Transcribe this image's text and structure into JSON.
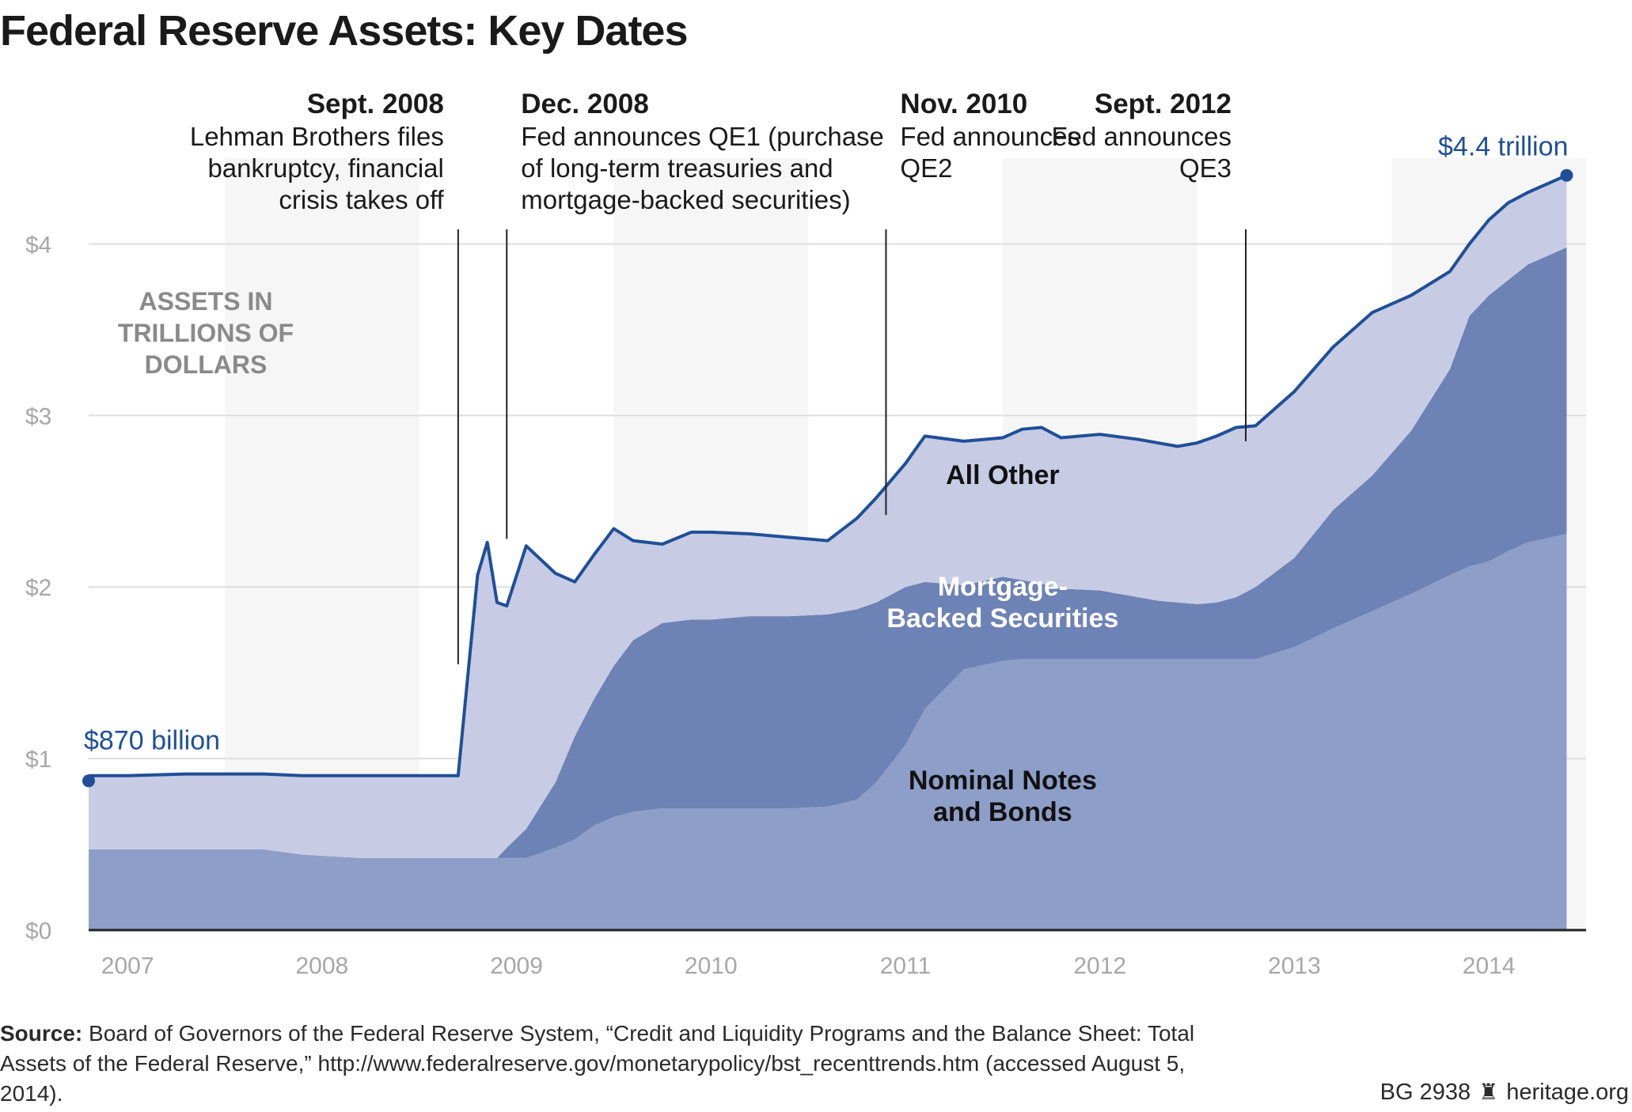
{
  "title": "Federal Reserve Assets: Key Dates",
  "chart_data": {
    "type": "area",
    "stacked": true,
    "title": "Federal Reserve Assets: Key Dates",
    "ylabel": "ASSETS IN TRILLIONS OF DOLLARS",
    "ylabel_lines": [
      "ASSETS IN",
      "TRILLIONS OF",
      "DOLLARS"
    ],
    "y_ticks": [
      "$0",
      "$1",
      "$2",
      "$3",
      "$4"
    ],
    "ylim": [
      0,
      4.5
    ],
    "xlim": [
      2006.8,
      2014.5
    ],
    "x_ticks": [
      {
        "label": "2007",
        "x": 2007.0
      },
      {
        "label": "2008",
        "x": 2008.0
      },
      {
        "label": "2009",
        "x": 2009.0
      },
      {
        "label": "2010",
        "x": 2010.0
      },
      {
        "label": "2011",
        "x": 2011.0
      },
      {
        "label": "2012",
        "x": 2012.0
      },
      {
        "label": "2013",
        "x": 2013.0
      },
      {
        "label": "2014",
        "x": 2014.0
      }
    ],
    "grid": true,
    "x": [
      2006.8,
      2007.0,
      2007.3,
      2007.5,
      2007.7,
      2007.9,
      2008.2,
      2008.5,
      2008.7,
      2008.8,
      2008.85,
      2008.9,
      2008.95,
      2009.05,
      2009.2,
      2009.3,
      2009.4,
      2009.5,
      2009.6,
      2009.75,
      2009.9,
      2010.0,
      2010.2,
      2010.4,
      2010.6,
      2010.75,
      2010.85,
      2011.0,
      2011.1,
      2011.3,
      2011.5,
      2011.6,
      2011.7,
      2011.8,
      2012.0,
      2012.2,
      2012.3,
      2012.4,
      2012.5,
      2012.6,
      2012.7,
      2012.8,
      2013.0,
      2013.2,
      2013.4,
      2013.6,
      2013.8,
      2013.9,
      2014.0,
      2014.1,
      2014.2,
      2014.4
    ],
    "series": [
      {
        "name": "Nominal Notes and Bonds",
        "color": "#8d9ec8",
        "values": [
          0.47,
          0.47,
          0.47,
          0.47,
          0.47,
          0.44,
          0.42,
          0.42,
          0.42,
          0.42,
          0.42,
          0.42,
          0.42,
          0.42,
          0.48,
          0.53,
          0.61,
          0.66,
          0.69,
          0.71,
          0.71,
          0.71,
          0.71,
          0.71,
          0.72,
          0.76,
          0.86,
          1.08,
          1.29,
          1.52,
          1.57,
          1.58,
          1.58,
          1.58,
          1.58,
          1.58,
          1.58,
          1.58,
          1.58,
          1.58,
          1.58,
          1.58,
          1.65,
          1.76,
          1.86,
          1.96,
          2.07,
          2.12,
          2.15,
          2.21,
          2.26,
          2.31
        ]
      },
      {
        "name": "Mortgage-Backed Securities",
        "color": "#6d82b5",
        "values": [
          0.0,
          0.0,
          0.0,
          0.0,
          0.0,
          0.0,
          0.0,
          0.0,
          0.0,
          0.0,
          0.0,
          0.0,
          0.06,
          0.17,
          0.38,
          0.6,
          0.74,
          0.88,
          1.0,
          1.08,
          1.1,
          1.1,
          1.12,
          1.12,
          1.12,
          1.11,
          1.05,
          0.92,
          0.74,
          0.49,
          0.49,
          0.46,
          0.44,
          0.41,
          0.4,
          0.36,
          0.34,
          0.33,
          0.32,
          0.33,
          0.36,
          0.42,
          0.52,
          0.69,
          0.79,
          0.95,
          1.2,
          1.46,
          1.55,
          1.58,
          1.62,
          1.67
        ]
      },
      {
        "name": "All Other",
        "color": "#c7cce4",
        "values": [
          0.43,
          0.43,
          0.44,
          0.44,
          0.44,
          0.46,
          0.48,
          0.48,
          0.48,
          1.65,
          1.84,
          1.49,
          1.41,
          1.65,
          1.22,
          0.9,
          0.84,
          0.8,
          0.58,
          0.46,
          0.51,
          0.51,
          0.48,
          0.46,
          0.43,
          0.53,
          0.61,
          0.72,
          0.85,
          0.84,
          0.81,
          0.88,
          0.91,
          0.88,
          0.91,
          0.92,
          0.92,
          0.91,
          0.94,
          0.97,
          0.99,
          0.94,
          0.97,
          0.95,
          0.95,
          0.79,
          0.57,
          0.42,
          0.44,
          0.45,
          0.42,
          0.42
        ]
      }
    ],
    "total_line_color": "#1f4f98",
    "start_label": "$870 billion",
    "end_label": "$4.4 trillion",
    "start_value": 0.87,
    "end_value": 4.4,
    "series_labels": [
      {
        "lines": [
          "All Other"
        ],
        "color": "#111111",
        "x": 2011.5,
        "y": 2.6
      },
      {
        "lines": [
          "Mortgage-",
          "Backed Securities"
        ],
        "color": "#ffffff",
        "x": 2011.5,
        "y": 1.95
      },
      {
        "lines": [
          "Nominal Notes",
          "and Bonds"
        ],
        "color": "#111111",
        "x": 2011.5,
        "y": 0.82
      }
    ],
    "annotations": [
      {
        "date": "Sept. 2008",
        "lines": [
          "Lehman Brothers files",
          "bankruptcy, financial",
          "crisis takes off"
        ],
        "x": 2008.7,
        "line_bottom": 1.55,
        "align": "end"
      },
      {
        "date": "Dec. 2008",
        "lines": [
          "Fed announces QE1 (purchase",
          "of long-term treasuries and",
          "mortgage-backed securities)"
        ],
        "x": 2008.95,
        "line_bottom": 2.28,
        "align": "start"
      },
      {
        "date": "Nov. 2010",
        "lines": [
          "Fed announces",
          "QE2"
        ],
        "x": 2010.9,
        "line_bottom": 2.42,
        "align": "start"
      },
      {
        "date": "Sept. 2012",
        "lines": [
          "Fed announces",
          "QE3"
        ],
        "x": 2012.75,
        "line_bottom": 2.85,
        "align": "end"
      }
    ]
  },
  "source": {
    "label": "Source:",
    "text": " Board of Governors of the Federal Reserve System, “Credit and Liquidity Programs and the Balance Sheet: Total Assets of the Federal Reserve,” http://www.federalreserve.gov/monetarypolicy/bst_recenttrends.htm (accessed August 5, 2014)."
  },
  "credit": {
    "code": "BG 2938",
    "icon": "liberty-bell-icon",
    "site": "heritage.org"
  }
}
